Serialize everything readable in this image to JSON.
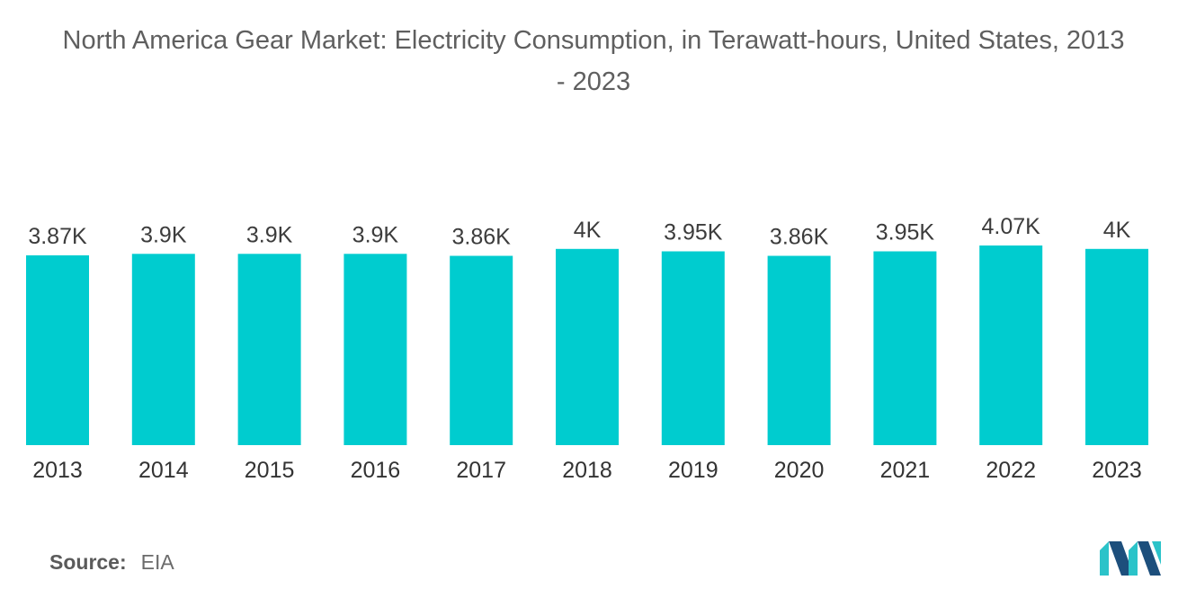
{
  "chart_data": {
    "type": "bar",
    "title": "North America Gear Market: Electricity Consumption, in Terawatt-hours, United States, 2013 - 2023",
    "title_line1": "North America Gear Market: Electricity Consumption, in Terawatt-hours, United States, 2013",
    "title_line2": "- 2023",
    "xlabel": "",
    "ylabel": "",
    "categories": [
      "2013",
      "2014",
      "2015",
      "2016",
      "2017",
      "2018",
      "2019",
      "2020",
      "2021",
      "2022",
      "2023"
    ],
    "values": [
      3870,
      3900,
      3900,
      3900,
      3860,
      4000,
      3950,
      3860,
      3950,
      4070,
      4000
    ],
    "data_labels": [
      "3.87K",
      "3.9K",
      "3.9K",
      "3.9K",
      "3.86K",
      "4K",
      "3.95K",
      "3.86K",
      "3.95K",
      "4.07K",
      "4K"
    ],
    "ylim": [
      0,
      4070
    ],
    "grid": false,
    "legend": "none",
    "bar_color": "#00cccf"
  },
  "source": {
    "label": "Source:",
    "value": "EIA"
  },
  "colors": {
    "title": "#5f5f5f",
    "tick_label": "#333333",
    "logo_dark": "#1d4f7c",
    "logo_light": "#2bc3c9"
  },
  "logo_name": "mordor-intelligence-logo"
}
